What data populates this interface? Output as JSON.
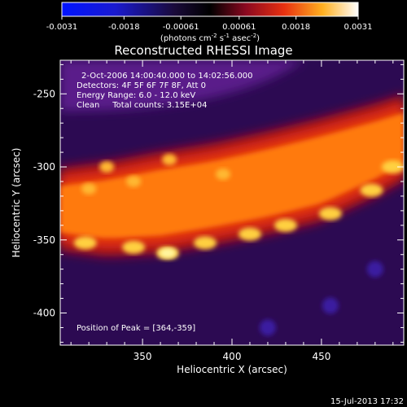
{
  "chart_data": {
    "type": "heatmap",
    "title": "Reconstructed RHESSI Image",
    "xlabel": "Heliocentric X (arcsec)",
    "ylabel": "Heliocentric Y (arcsec)",
    "xlim": [
      304,
      496
    ],
    "ylim": [
      -422,
      -227
    ],
    "xticks": [
      350,
      400,
      450
    ],
    "yticks": [
      -250,
      -300,
      -350,
      -400
    ],
    "colorbar": {
      "ticks": [
        "-0.0031",
        "-0.0018",
        "-0.00061",
        "0.00061",
        "0.0018",
        "0.0031"
      ],
      "label_prefix": "(photons cm",
      "label_sup1": "-2",
      "label_mid": " s",
      "label_sup2": "-1",
      "label_end": " asec",
      "label_sup3": "-2",
      "label_close": ")",
      "range": [
        -0.0031,
        0.0031
      ]
    },
    "annotations": [
      "2-Oct-2006 14:00:40.000 to 14:02:56.000",
      "Detectors: 4F 5F 6F 7F 8F, Att 0",
      "Energy Range: 6.0 - 12.0 keV",
      "Clean     Total counts: 3.15E+04"
    ],
    "peak_text": "Position of Peak = [364,-359]",
    "peak": [
      364,
      -359
    ],
    "emission_band": {
      "upper_arc": [
        [
          304,
          -300
        ],
        [
          330,
          -296
        ],
        [
          360,
          -289
        ],
        [
          390,
          -283
        ],
        [
          420,
          -275
        ],
        [
          450,
          -266
        ],
        [
          480,
          -256
        ],
        [
          496,
          -250
        ]
      ],
      "lower_arc": [
        [
          304,
          -358
        ],
        [
          330,
          -362
        ],
        [
          360,
          -360
        ],
        [
          390,
          -354
        ],
        [
          420,
          -347
        ],
        [
          450,
          -338
        ],
        [
          480,
          -321
        ],
        [
          496,
          -310
        ]
      ]
    }
  },
  "footer": {
    "timestamp": "15-Jul-2013 17:32"
  }
}
